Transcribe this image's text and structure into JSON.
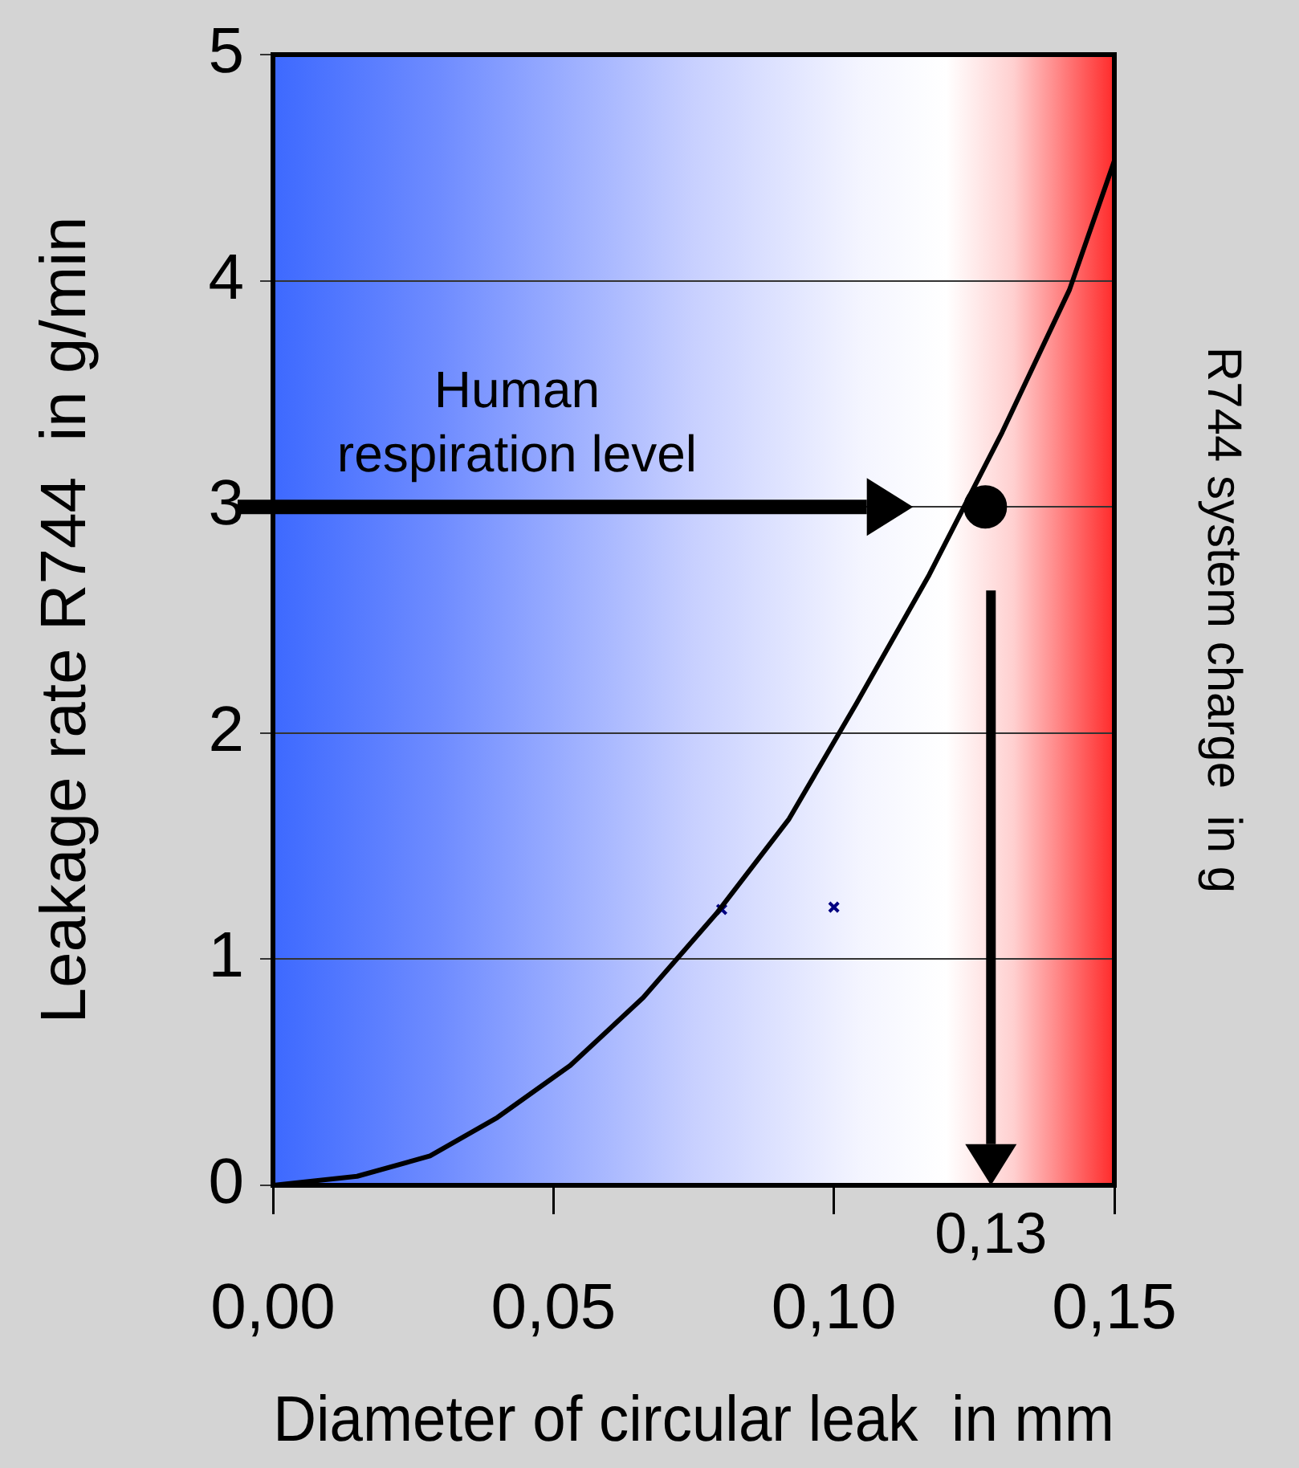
{
  "chart_data": {
    "type": "line",
    "xlabel": "Diameter of circular leak  in mm",
    "ylabel": "Leakage rate R744  in g/min",
    "y2label": "R744 system charge  in g",
    "xlim": [
      0,
      0.15
    ],
    "xticks": [
      {
        "value": 0,
        "label": "0,00"
      },
      {
        "value": 0.05,
        "label": "0,05"
      },
      {
        "value": 0.1,
        "label": "0,10"
      },
      {
        "value": 0.15,
        "label": "0,15"
      }
    ],
    "ylim": [
      0,
      5
    ],
    "yticks": [
      0,
      1,
      2,
      3,
      4,
      5
    ],
    "grid": "y",
    "legend": false,
    "series": [
      {
        "color": "#000000",
        "marker": "none",
        "x": [
          0,
          0.015,
          0.028,
          0.04,
          0.053,
          0.066,
          0.079,
          0.092,
          0.104,
          0.117,
          0.13,
          0.142,
          0.15
        ],
        "values": [
          0,
          0.04,
          0.13,
          0.3,
          0.53,
          0.83,
          1.2,
          1.62,
          2.13,
          2.7,
          3.33,
          3.96,
          4.53
        ]
      },
      {
        "type": "scatter",
        "color": "#000080",
        "marker": "cross",
        "x": [
          0.08,
          0.1
        ],
        "values": [
          1.22,
          1.23
        ]
      },
      {
        "type": "scatter",
        "color": "#000000",
        "marker": "circle",
        "x": [
          0.127
        ],
        "values": [
          3.0
        ]
      }
    ],
    "ref_lines": [
      {
        "axis": "y",
        "value": 3,
        "label": "Human respiration level",
        "color": "#000000"
      },
      {
        "axis": "x",
        "value": 0.128,
        "label": "0,13",
        "color": "#000000"
      }
    ]
  }
}
